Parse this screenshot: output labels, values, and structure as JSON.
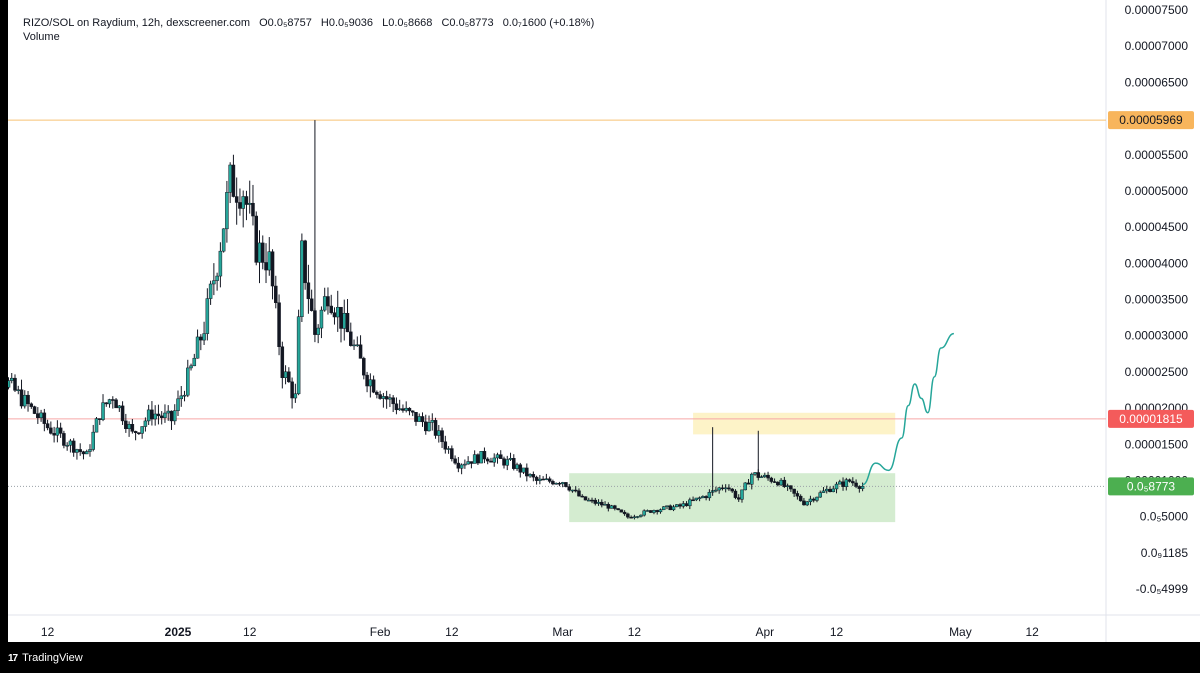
{
  "header": {
    "symbol": "RIZO/SOL on Raydium, 12h, dexscreener.com",
    "open": "O0.0₅8757",
    "high": "H0.0₅9036",
    "low": "L0.0₅8668",
    "close": "C0.0₅8773",
    "change": "0.0₇1600 (+0.18%)",
    "volume_label": "Volume"
  },
  "footer": {
    "logo_text": "TradingView",
    "logo_icon": "tradingview-logo-icon"
  },
  "colors": {
    "up": "#26a69a",
    "candle_body_down": "#131722",
    "candle_body_up": "#ffffff",
    "orange_line": "#f7c274",
    "orange_tag": "#f8b55c",
    "red_line": "#f7a6a6",
    "red_tag": "#f45b5b",
    "green_tag": "#4caf50",
    "green_box": "#d4ecd0",
    "yellow_box": "#fdf3c8",
    "projection": "#26a69a"
  },
  "chart_data": {
    "type": "candlestick",
    "title": "RIZO/SOL on Raydium, 12h, dexscreener.com",
    "y_axis_ticks": [
      "0.00007500",
      "0.00007000",
      "0.00006500",
      "0.00006000",
      "0.00005500",
      "0.00005000",
      "0.00004500",
      "0.00004000",
      "0.00003500",
      "0.00003000",
      "0.00002500",
      "0.00002000",
      "0.00001500",
      "0.00001000",
      "0.0₅5000",
      "0.0₉1185",
      "-0.0₅4999"
    ],
    "x_axis_ticks": [
      "12",
      "2025",
      "12",
      "Feb",
      "12",
      "Mar",
      "12",
      "Apr",
      "12",
      "May",
      "12"
    ],
    "ylim": [
      -5.4999e-06,
      7.5e-05
    ],
    "horizontal_lines": [
      {
        "label": "0.00005969",
        "value": 5.969e-05,
        "color": "orange"
      },
      {
        "label": "0.00001815",
        "value": 1.815e-05,
        "color": "red"
      },
      {
        "label": "0.0₅8773",
        "value": 8.773e-06,
        "color": "green",
        "style": "dotted"
      }
    ],
    "zones": [
      {
        "name": "accumulation-range",
        "color": "green",
        "from": 3.8e-06,
        "to": 1.06e-05,
        "x_start": "2025-03-02",
        "x_end": "2025-04-21"
      },
      {
        "name": "resistance-zone",
        "color": "yellow",
        "from": 1.6e-05,
        "to": 1.9e-05,
        "x_start": "2025-03-21",
        "x_end": "2025-04-21"
      }
    ],
    "series": [
      {
        "type": "close_path",
        "points": [
          [
            "2024-12-01",
            2.75e-05
          ],
          [
            "2024-12-03",
            2.55e-05
          ],
          [
            "2024-12-06",
            2.3e-05
          ],
          [
            "2024-12-09",
            2e-05
          ],
          [
            "2024-12-12",
            1.7e-05
          ],
          [
            "2024-12-15",
            1.5e-05
          ],
          [
            "2024-12-18",
            1.3e-05
          ],
          [
            "2024-12-20",
            1.9e-05
          ],
          [
            "2024-12-22",
            2.15e-05
          ],
          [
            "2024-12-25",
            1.6e-05
          ],
          [
            "2024-12-28",
            1.9e-05
          ],
          [
            "2024-12-31",
            1.8e-05
          ],
          [
            "2025-01-03",
            2.5e-05
          ],
          [
            "2025-01-05",
            3.1e-05
          ],
          [
            "2025-01-07",
            4e-05
          ],
          [
            "2025-01-09",
            5.1e-05
          ],
          [
            "2025-01-11",
            5e-05
          ],
          [
            "2025-01-13",
            4.2e-05
          ],
          [
            "2025-01-15",
            4e-05
          ],
          [
            "2025-01-17",
            2.5e-05
          ],
          [
            "2025-01-19",
            2.1e-05
          ],
          [
            "2025-01-20",
            4.1e-05
          ],
          [
            "2025-01-22",
            3e-05
          ],
          [
            "2025-01-24",
            3.6e-05
          ],
          [
            "2025-01-27",
            3e-05
          ],
          [
            "2025-01-30",
            2.4e-05
          ],
          [
            "2025-02-02",
            2.1e-05
          ],
          [
            "2025-02-05",
            1.9e-05
          ],
          [
            "2025-02-09",
            1.7e-05
          ],
          [
            "2025-02-13",
            1.2e-05
          ],
          [
            "2025-02-17",
            1.3e-05
          ],
          [
            "2025-02-21",
            1.2e-05
          ],
          [
            "2025-02-25",
            9.5e-06
          ],
          [
            "2025-03-01",
            9.5e-06
          ],
          [
            "2025-03-04",
            7e-06
          ],
          [
            "2025-03-08",
            6e-06
          ],
          [
            "2025-03-11",
            4.5e-06
          ],
          [
            "2025-03-15",
            5.5e-06
          ],
          [
            "2025-03-19",
            6e-06
          ],
          [
            "2025-03-23",
            7.5e-06
          ],
          [
            "2025-03-26",
            9e-06
          ],
          [
            "2025-03-28",
            7e-06
          ],
          [
            "2025-03-30",
            1.05e-05
          ],
          [
            "2025-04-03",
            9.5e-06
          ],
          [
            "2025-04-07",
            6.5e-06
          ],
          [
            "2025-04-11",
            8.5e-06
          ],
          [
            "2025-04-14",
            9.5e-06
          ],
          [
            "2025-04-16",
            8.8e-06
          ]
        ]
      }
    ],
    "spikes": [
      {
        "x": "2025-01-22",
        "high": 5.969e-05
      },
      {
        "x": "2025-03-24",
        "high": 1.7e-05
      },
      {
        "x": "2025-03-31",
        "high": 1.65e-05
      }
    ],
    "projection": {
      "points": [
        [
          "2025-04-16",
          9e-06
        ],
        [
          "2025-04-18",
          1.2e-05
        ],
        [
          "2025-04-20",
          1.1e-05
        ],
        [
          "2025-04-22",
          1.55e-05
        ],
        [
          "2025-04-23",
          2e-05
        ],
        [
          "2025-04-24",
          2.3e-05
        ],
        [
          "2025-04-25",
          2.1e-05
        ],
        [
          "2025-04-26",
          1.9e-05
        ],
        [
          "2025-04-27",
          2.4e-05
        ],
        [
          "2025-04-28",
          2.8e-05
        ],
        [
          "2025-04-30",
          3e-05
        ]
      ]
    }
  }
}
